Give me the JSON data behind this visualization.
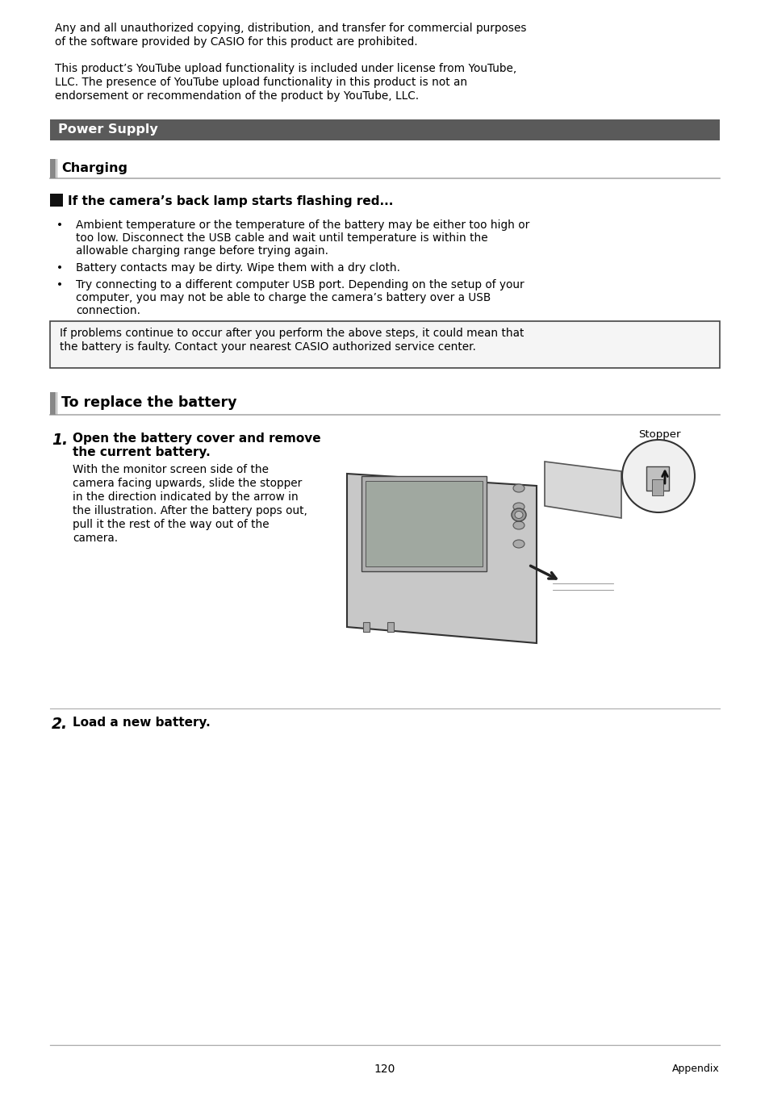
{
  "page_bg": "#ffffff",
  "text_color": "#000000",
  "para1_line1": "Any and all unauthorized copying, distribution, and transfer for commercial purposes",
  "para1_line2": "of the software provided by CASIO for this product are prohibited.",
  "para2_line1": "This product’s YouTube upload functionality is included under license from YouTube,",
  "para2_line2": "LLC. The presence of YouTube upload functionality in this product is not an",
  "para2_line3": "endorsement or recommendation of the product by YouTube, LLC.",
  "section_power_supply": "Power Supply",
  "section_power_supply_bg": "#5a5a5a",
  "section_power_supply_text_color": "#ffffff",
  "section_charging": "Charging",
  "subsection_header": "If the camera’s back lamp starts flashing red...",
  "bullet1_line1": "Ambient temperature or the temperature of the battery may be either too high or",
  "bullet1_line2": "too low. Disconnect the USB cable and wait until temperature is within the",
  "bullet1_line3": "allowable charging range before trying again.",
  "bullet2": "Battery contacts may be dirty. Wipe them with a dry cloth.",
  "bullet3_line1": "Try connecting to a different computer USB port. Depending on the setup of your",
  "bullet3_line2": "computer, you may not be able to charge the camera’s battery over a USB",
  "bullet3_line3": "connection.",
  "note_box_text_line1": "If problems continue to occur after you perform the above steps, it could mean that",
  "note_box_text_line2": "the battery is faulty. Contact your nearest CASIO authorized service center.",
  "section_replace": "To replace the battery",
  "step1_num": "1.",
  "step1_bold1": "Open the battery cover and remove",
  "step1_bold2": "the current battery.",
  "step1_body_line1": "With the monitor screen side of the",
  "step1_body_line2": "camera facing upwards, slide the stopper",
  "step1_body_line3": "in the direction indicated by the arrow in",
  "step1_body_line4": "the illustration. After the battery pops out,",
  "step1_body_line5": "pull it the rest of the way out of the",
  "step1_body_line6": "camera.",
  "stopper_label": "Stopper",
  "step2_num": "2.",
  "step2_header": "Load a new battery.",
  "page_number": "120",
  "appendix_label": "Appendix",
  "header_bar_color": "#5a5a5a",
  "section_bar_color": "#888888",
  "line_color": "#aaaaaa",
  "note_box_border": "#444444",
  "note_box_bg": "#f5f5f5"
}
